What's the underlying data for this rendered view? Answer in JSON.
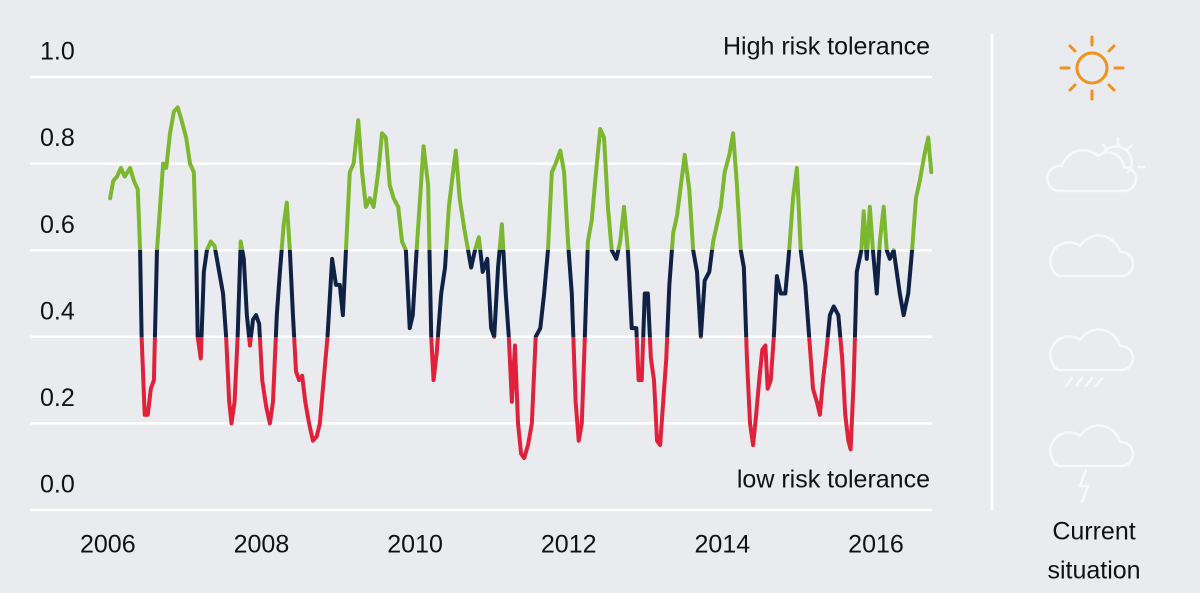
{
  "chart_data": {
    "type": "line",
    "annotations": {
      "high": "High risk tolerance",
      "low": "low risk tolerance"
    },
    "side_label": [
      "Current",
      "situation"
    ],
    "xlim": [
      2005,
      2016.75
    ],
    "xticks": [
      2006,
      2008,
      2010,
      2012,
      2014,
      2016
    ],
    "ylim": [
      0,
      1
    ],
    "yticks": [
      {
        "value": 0,
        "label": "0.0"
      },
      0.2,
      0.4,
      0.6,
      0.8,
      {
        "value": 1,
        "label": "1.0"
      }
    ],
    "grid": true,
    "color_bands": {
      "thresholds": [
        0.4,
        0.6
      ],
      "colors": [
        "#e2203a",
        "#0f2245",
        "#7cb82f"
      ]
    },
    "annotation_colors": {
      "high": "#7cb82f",
      "low": "#e2203a"
    },
    "x": [
      2006.03,
      2006.07,
      2006.12,
      2006.17,
      2006.22,
      2006.29,
      2006.34,
      2006.39,
      2006.42,
      2006.44,
      2006.48,
      2006.52,
      2006.56,
      2006.6,
      2006.64,
      2006.68,
      2006.72,
      2006.76,
      2006.81,
      2006.86,
      2006.91,
      2006.96,
      2007.02,
      2007.07,
      2007.12,
      2007.15,
      2007.17,
      2007.21,
      2007.25,
      2007.29,
      2007.34,
      2007.39,
      2007.45,
      2007.5,
      2007.54,
      2007.58,
      2007.61,
      2007.65,
      2007.69,
      2007.73,
      2007.77,
      2007.81,
      2007.85,
      2007.89,
      2007.93,
      2007.97,
      2008.01,
      2008.06,
      2008.11,
      2008.15,
      2008.2,
      2008.24,
      2008.29,
      2008.33,
      2008.37,
      2008.41,
      2008.45,
      2008.49,
      2008.53,
      2008.57,
      2008.62,
      2008.67,
      2008.72,
      2008.76,
      2008.81,
      2008.86,
      2008.92,
      2008.97,
      2009.02,
      2009.06,
      2009.1,
      2009.15,
      2009.2,
      2009.26,
      2009.31,
      2009.36,
      2009.41,
      2009.46,
      2009.52,
      2009.57,
      2009.62,
      2009.67,
      2009.72,
      2009.78,
      2009.83,
      2009.88,
      2009.93,
      2009.97,
      2010.02,
      2010.08,
      2010.11,
      2010.17,
      2010.21,
      2010.24,
      2010.28,
      2010.34,
      2010.39,
      2010.44,
      2010.48,
      2010.53,
      2010.58,
      2010.64,
      2010.69,
      2010.73,
      2010.78,
      2010.83,
      2010.88,
      2010.94,
      2010.99,
      2011.03,
      2011.08,
      2011.13,
      2011.18,
      2011.22,
      2011.26,
      2011.3,
      2011.34,
      2011.38,
      2011.42,
      2011.47,
      2011.52,
      2011.57,
      2011.63,
      2011.68,
      2011.73,
      2011.78,
      2011.83,
      2011.89,
      2011.94,
      2011.99,
      2012.04,
      2012.09,
      2012.13,
      2012.17,
      2012.21,
      2012.25,
      2012.3,
      2012.35,
      2012.41,
      2012.46,
      2012.51,
      2012.56,
      2012.62,
      2012.67,
      2012.72,
      2012.77,
      2012.82,
      2012.88,
      2012.91,
      2012.95,
      2012.99,
      2013.03,
      2013.07,
      2013.11,
      2013.15,
      2013.19,
      2013.23,
      2013.27,
      2013.31,
      2013.36,
      2013.41,
      2013.46,
      2013.51,
      2013.57,
      2013.62,
      2013.67,
      2013.72,
      2013.77,
      2013.83,
      2013.88,
      2013.93,
      2013.98,
      2014.03,
      2014.09,
      2014.14,
      2014.19,
      2014.24,
      2014.28,
      2014.32,
      2014.36,
      2014.4,
      2014.44,
      2014.48,
      2014.52,
      2014.56,
      2014.59,
      2014.63,
      2014.67,
      2014.71,
      2014.76,
      2014.82,
      2014.87,
      2014.92,
      2014.97,
      2015.02,
      2015.08,
      2015.13,
      2015.18,
      2015.23,
      2015.27,
      2015.31,
      2015.35,
      2015.4,
      2015.45,
      2015.51,
      2015.56,
      2015.6,
      2015.64,
      2015.67,
      2015.71,
      2015.75,
      2015.81,
      2015.84,
      2015.88,
      2015.92,
      2015.96,
      2016.01,
      2016.05,
      2016.1,
      2016.14,
      2016.18,
      2016.23,
      2016.27,
      2016.31,
      2016.36,
      2016.42,
      2016.47,
      2016.52,
      2016.57,
      2016.63,
      2016.68,
      2016.72
    ],
    "values": [
      0.72,
      0.76,
      0.77,
      0.79,
      0.77,
      0.79,
      0.76,
      0.74,
      0.6,
      0.4,
      0.22,
      0.22,
      0.28,
      0.3,
      0.6,
      0.7,
      0.8,
      0.79,
      0.87,
      0.92,
      0.93,
      0.9,
      0.86,
      0.8,
      0.78,
      0.6,
      0.4,
      0.35,
      0.55,
      0.6,
      0.62,
      0.61,
      0.55,
      0.5,
      0.4,
      0.25,
      0.2,
      0.25,
      0.4,
      0.62,
      0.58,
      0.45,
      0.38,
      0.44,
      0.45,
      0.43,
      0.3,
      0.24,
      0.2,
      0.25,
      0.45,
      0.55,
      0.66,
      0.71,
      0.6,
      0.45,
      0.32,
      0.3,
      0.31,
      0.25,
      0.2,
      0.16,
      0.17,
      0.2,
      0.3,
      0.4,
      0.58,
      0.52,
      0.52,
      0.45,
      0.6,
      0.78,
      0.8,
      0.9,
      0.78,
      0.7,
      0.72,
      0.7,
      0.78,
      0.87,
      0.86,
      0.75,
      0.72,
      0.7,
      0.62,
      0.6,
      0.42,
      0.45,
      0.6,
      0.76,
      0.84,
      0.75,
      0.4,
      0.3,
      0.36,
      0.5,
      0.56,
      0.7,
      0.76,
      0.83,
      0.72,
      0.65,
      0.6,
      0.56,
      0.6,
      0.63,
      0.55,
      0.58,
      0.42,
      0.4,
      0.56,
      0.66,
      0.5,
      0.4,
      0.25,
      0.38,
      0.2,
      0.13,
      0.12,
      0.15,
      0.2,
      0.4,
      0.42,
      0.5,
      0.6,
      0.78,
      0.8,
      0.83,
      0.78,
      0.62,
      0.5,
      0.25,
      0.16,
      0.2,
      0.4,
      0.62,
      0.67,
      0.77,
      0.88,
      0.86,
      0.7,
      0.6,
      0.58,
      0.62,
      0.7,
      0.6,
      0.42,
      0.42,
      0.3,
      0.3,
      0.5,
      0.5,
      0.35,
      0.3,
      0.16,
      0.15,
      0.25,
      0.35,
      0.52,
      0.64,
      0.68,
      0.75,
      0.82,
      0.74,
      0.6,
      0.55,
      0.4,
      0.53,
      0.55,
      0.62,
      0.66,
      0.7,
      0.78,
      0.82,
      0.87,
      0.75,
      0.6,
      0.56,
      0.35,
      0.2,
      0.15,
      0.22,
      0.3,
      0.37,
      0.38,
      0.28,
      0.3,
      0.4,
      0.54,
      0.5,
      0.5,
      0.6,
      0.72,
      0.79,
      0.6,
      0.52,
      0.4,
      0.28,
      0.25,
      0.22,
      0.3,
      0.36,
      0.45,
      0.47,
      0.45,
      0.35,
      0.22,
      0.16,
      0.14,
      0.3,
      0.55,
      0.6,
      0.69,
      0.58,
      0.7,
      0.6,
      0.5,
      0.62,
      0.7,
      0.6,
      0.58,
      0.6,
      0.55,
      0.5,
      0.45,
      0.5,
      0.6,
      0.72,
      0.76,
      0.82,
      0.86,
      0.78
    ]
  }
}
